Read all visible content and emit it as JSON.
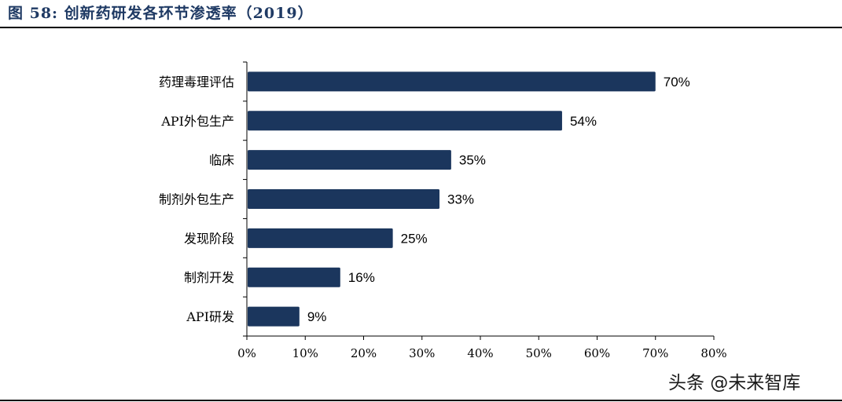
{
  "figure": {
    "title": "图 58: 创新药研发各环节渗透率（2019）",
    "watermark": "头条 @未来智库"
  },
  "chart_data": {
    "type": "bar",
    "orientation": "horizontal",
    "categories": [
      "药理毒理评估",
      "API外包生产",
      "临床",
      "制剂外包生产",
      "发现阶段",
      "制剂开发",
      "API研发"
    ],
    "values": [
      70,
      54,
      35,
      33,
      25,
      16,
      9
    ],
    "data_labels": [
      "70%",
      "54%",
      "35%",
      "33%",
      "25%",
      "16%",
      "9%"
    ],
    "x_ticks": [
      "0%",
      "10%",
      "20%",
      "30%",
      "40%",
      "50%",
      "60%",
      "70%",
      "80%"
    ],
    "xlim": [
      0,
      80
    ],
    "grid": false,
    "bar_color": "#1b365d"
  }
}
